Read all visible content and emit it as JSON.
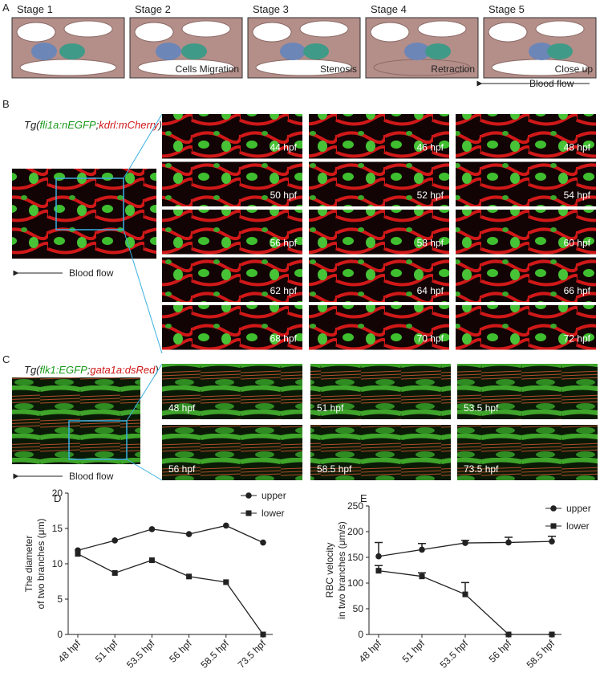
{
  "panel_a": {
    "label": "A",
    "stages": [
      {
        "title": "Stage 1"
      },
      {
        "title": "Stage 2",
        "caption": "Cells Migration"
      },
      {
        "title": "Stage 3",
        "caption": "Stenosis"
      },
      {
        "title": "Stage 4",
        "caption": "Retraction"
      },
      {
        "title": "Stage 5",
        "caption": "Close up"
      }
    ],
    "flow": "Blood flow"
  },
  "panel_b": {
    "label": "B",
    "title_parts": [
      "Tg(",
      "fli1a:nEGFP",
      ";",
      "kdrl:mCherry",
      ")"
    ],
    "times": [
      "44 hpf",
      "46 hpf",
      "48 hpf",
      "50 hpf",
      "52 hpf",
      "54 hpf",
      "56 hpf",
      "58 hpf",
      "60 hpf",
      "62 hpf",
      "64 hpf",
      "66 hpf",
      "68 hpf",
      "70 hpf",
      "72 hpf"
    ],
    "flow": "Blood flow"
  },
  "panel_c": {
    "label": "C",
    "title_parts": [
      "Tg(",
      "flk1:EGFP",
      ";",
      "gata1a:dsRed",
      ")"
    ],
    "times": [
      "48 hpf",
      "51 hpf",
      "53.5 hpf",
      "56 hpf",
      "58.5 hpf",
      "73.5 hpf"
    ],
    "flow": "Blood flow"
  },
  "chart_data": [
    {
      "type": "line",
      "panel": "D",
      "ylabel": [
        "The diameter",
        "of two branches (μm)"
      ],
      "categories": [
        "48 hpf",
        "51 hpf",
        "53.5 hpf",
        "56 hpf",
        "58.5 hpf",
        "73.5 hpf"
      ],
      "series": [
        {
          "name": "upper",
          "color": "#222222",
          "marker": "circle",
          "values": [
            11.9,
            13.3,
            14.9,
            14.2,
            15.4,
            13.0
          ]
        },
        {
          "name": "lower",
          "color": "#222222",
          "marker": "square",
          "values": [
            11.4,
            8.7,
            10.5,
            8.2,
            7.4,
            0
          ]
        }
      ],
      "ylim": [
        0,
        20
      ],
      "yticks": [
        0,
        5,
        10,
        15,
        20
      ],
      "legend": "upper right"
    },
    {
      "type": "line",
      "panel": "E",
      "ylabel": [
        "RBC velocity",
        "in two branches (μm/s)"
      ],
      "categories": [
        "48 hpf",
        "51 hpf",
        "53.5 hpf",
        "56 hpf",
        "58.5 hpf"
      ],
      "series": [
        {
          "name": "upper",
          "color": "#222222",
          "marker": "circle",
          "values": [
            152,
            165,
            178,
            179,
            181
          ],
          "errors": [
            27,
            12,
            5,
            10,
            10
          ]
        },
        {
          "name": "lower",
          "color": "#222222",
          "marker": "square",
          "values": [
            124,
            113,
            78,
            0,
            0
          ],
          "errors": [
            10,
            7,
            23,
            0,
            0
          ]
        }
      ],
      "ylim": [
        0,
        250
      ],
      "yticks": [
        0,
        50,
        100,
        150,
        200,
        250
      ],
      "legend": "upper right"
    }
  ]
}
